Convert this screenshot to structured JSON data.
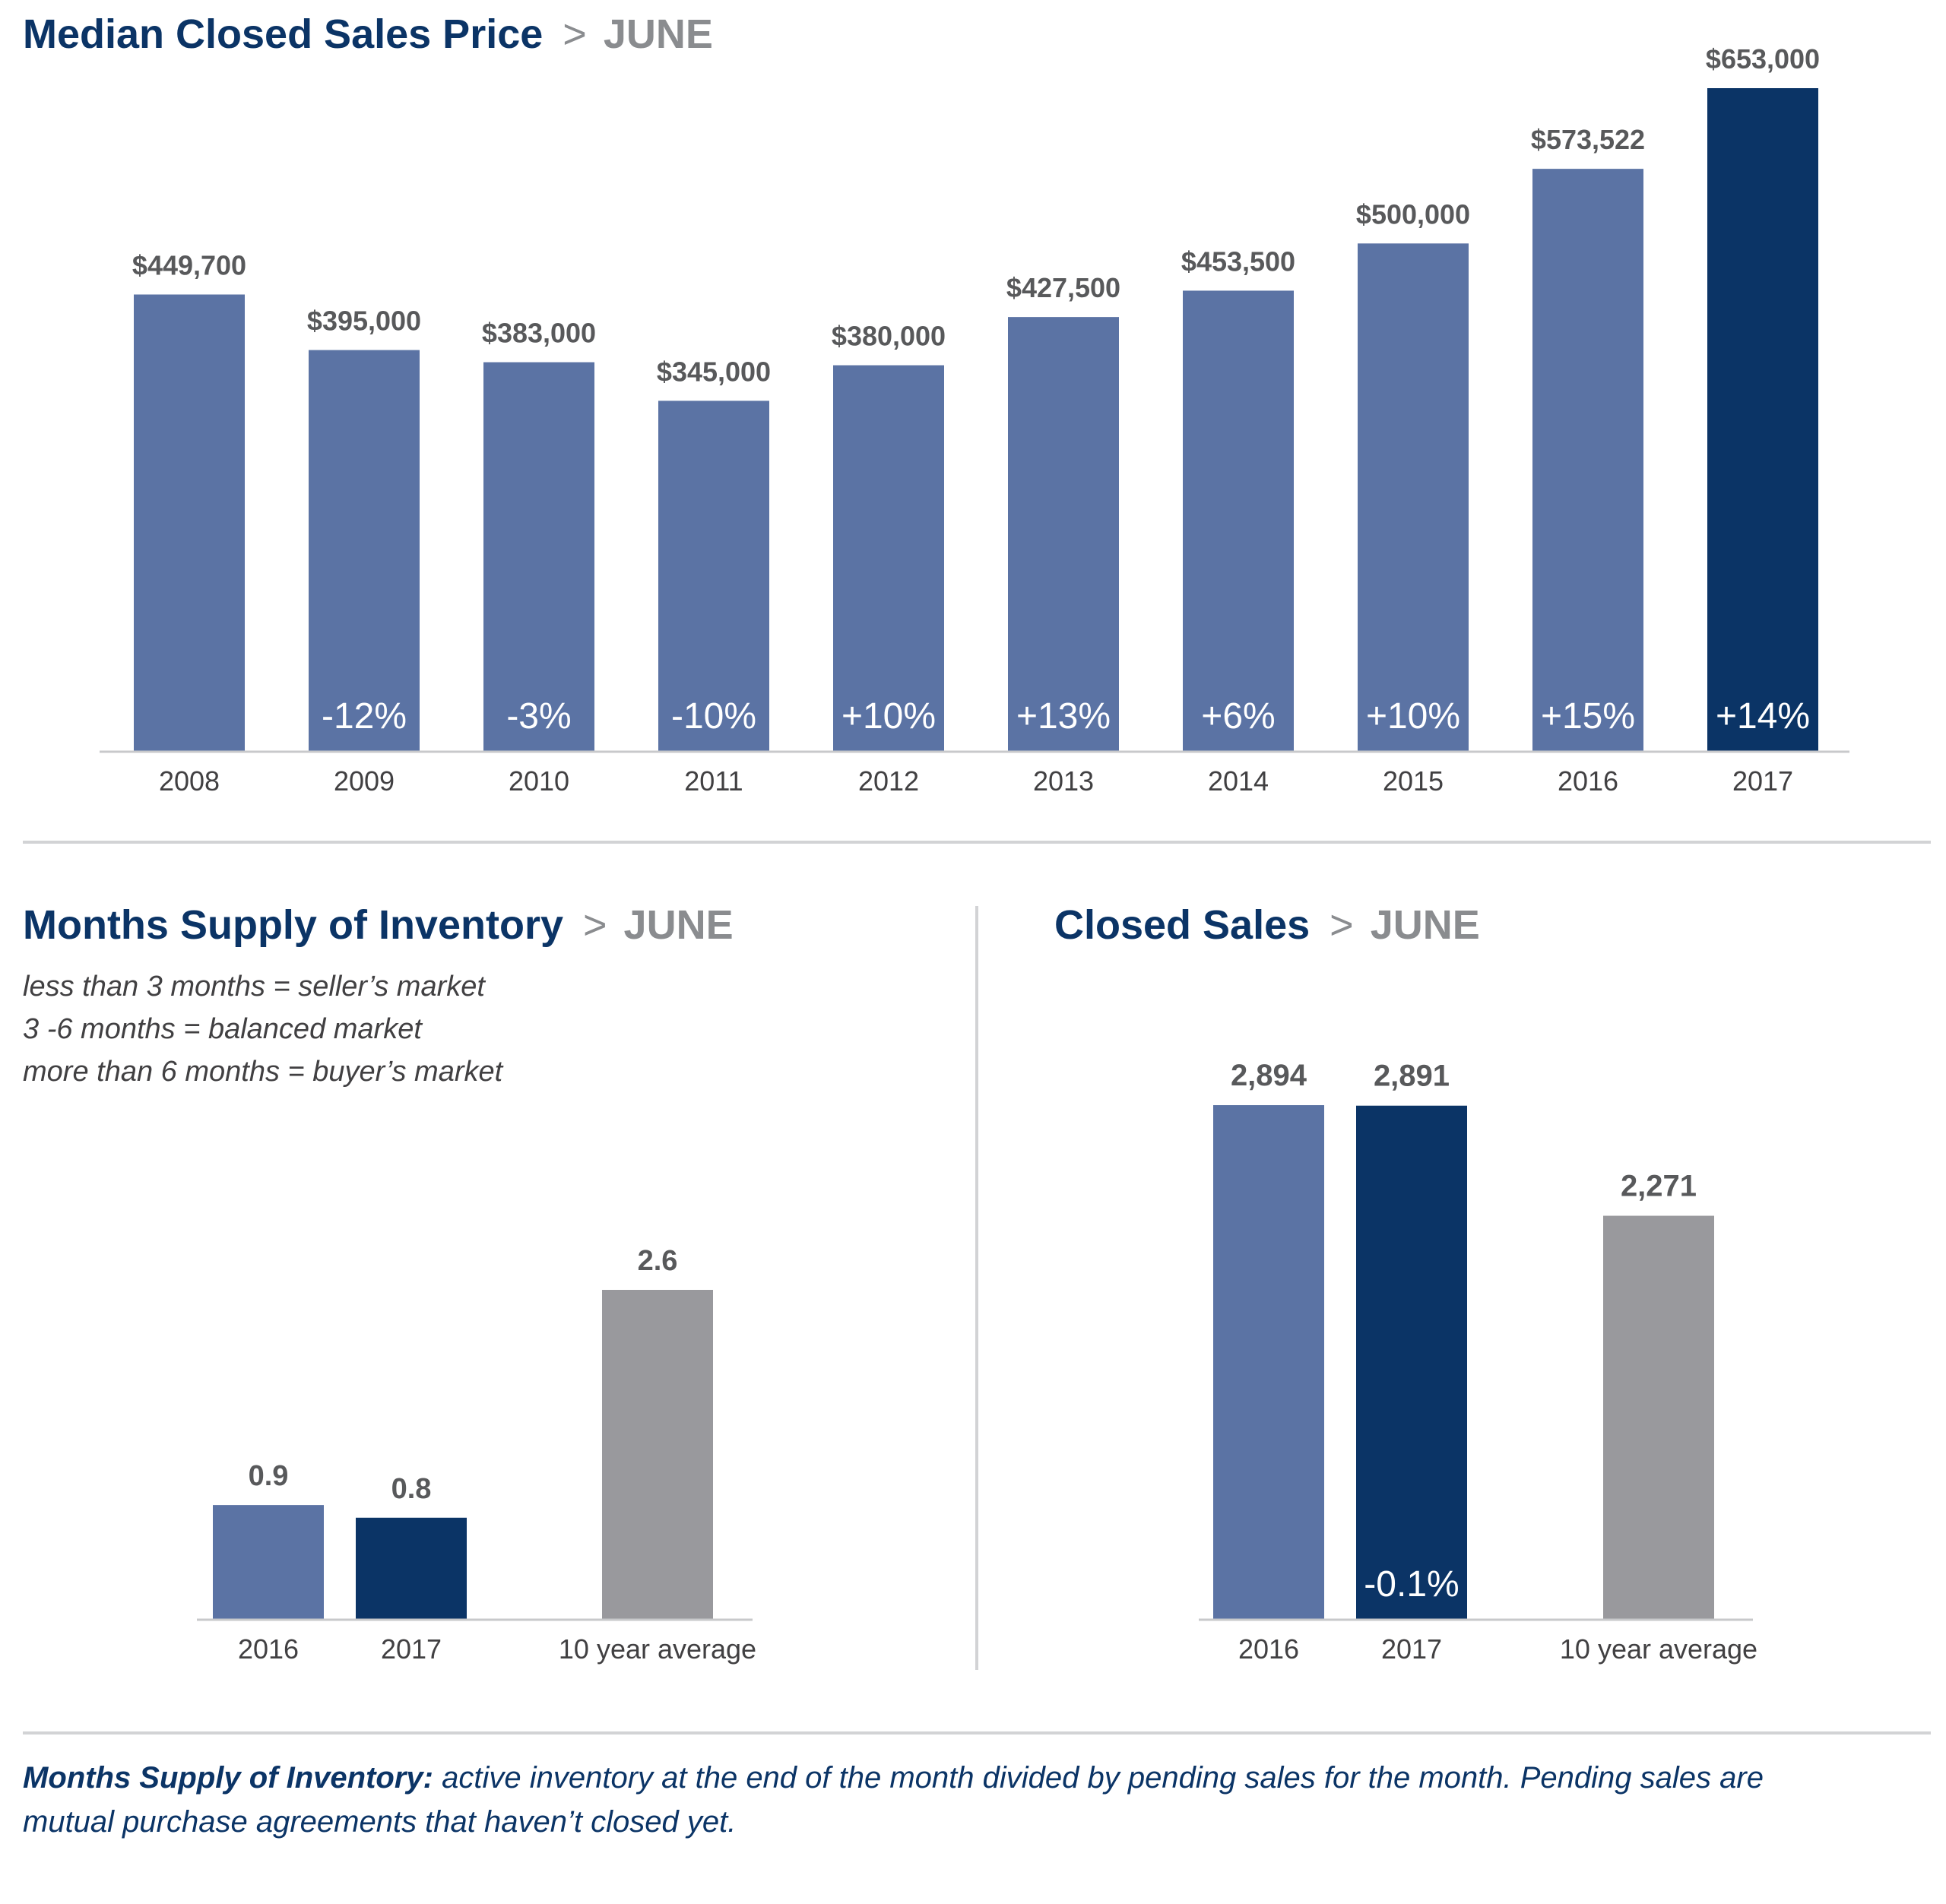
{
  "sections": {
    "median": {
      "title": "Median Closed Sales Price",
      "separator": ">",
      "month": "JUNE"
    },
    "supply": {
      "title": "Months Supply of Inventory",
      "separator": ">",
      "month": "JUNE",
      "notes": [
        "less than 3 months = seller’s market",
        "3 -6 months = balanced market",
        "more than 6 months = buyer’s market"
      ]
    },
    "closed": {
      "title": "Closed Sales",
      "separator": ">",
      "month": "JUNE"
    }
  },
  "footnote": {
    "term": "Months Supply of Inventory:",
    "text": " active inventory at the end of the month divided by pending sales for the month. Pending sales are mutual purchase agreements that haven’t closed yet."
  },
  "colors": {
    "primary": "#5b73a4",
    "highlight": "#0b3466",
    "average": "#99999d",
    "value_label": "#58595b",
    "axis_label": "#414042",
    "change_label": "#ffffff"
  },
  "chart_data": [
    {
      "id": "median",
      "type": "bar",
      "categories": [
        "2008",
        "2009",
        "2010",
        "2011",
        "2012",
        "2013",
        "2014",
        "2015",
        "2016",
        "2017"
      ],
      "values": [
        449700,
        395000,
        383000,
        345000,
        380000,
        427500,
        453500,
        500000,
        573522,
        653000
      ],
      "value_labels": [
        "$449,700",
        "$395,000",
        "$383,000",
        "$345,000",
        "$380,000",
        "$427,500",
        "$453,500",
        "$500,000",
        "$573,522",
        "$653,000"
      ],
      "change_labels": [
        "",
        "-12%",
        "-3%",
        "-10%",
        "+10%",
        "+13%",
        "+6%",
        "+10%",
        "+15%",
        "+14%"
      ],
      "bar_colors": [
        "primary",
        "primary",
        "primary",
        "primary",
        "primary",
        "primary",
        "primary",
        "primary",
        "primary",
        "highlight"
      ],
      "ylim": [
        0,
        653000
      ],
      "grid": false
    },
    {
      "id": "supply",
      "type": "bar",
      "categories": [
        "2016",
        "2017",
        "10 year average"
      ],
      "values": [
        0.9,
        0.8,
        2.6
      ],
      "value_labels": [
        "0.9",
        "0.8",
        "2.6"
      ],
      "change_labels": [
        "",
        "",
        ""
      ],
      "bar_colors": [
        "primary",
        "highlight",
        "average"
      ],
      "ylim": [
        0,
        2.6
      ],
      "grid": false
    },
    {
      "id": "closed",
      "type": "bar",
      "categories": [
        "2016",
        "2017",
        "10 year average"
      ],
      "values": [
        2894,
        2891,
        2271
      ],
      "value_labels": [
        "2,894",
        "2,891",
        "2,271"
      ],
      "change_labels": [
        "",
        "-0.1%",
        ""
      ],
      "bar_colors": [
        "primary",
        "highlight",
        "average"
      ],
      "ylim": [
        0,
        2894
      ],
      "grid": false
    }
  ]
}
